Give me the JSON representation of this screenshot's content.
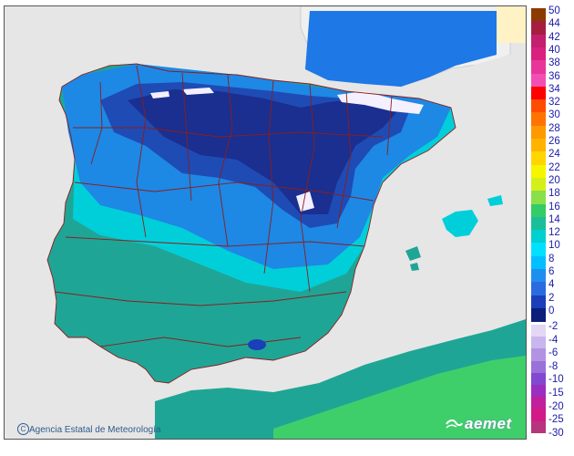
{
  "legend": {
    "labels": [
      "50",
      "44",
      "42",
      "40",
      "38",
      "36",
      "34",
      "32",
      "30",
      "28",
      "26",
      "24",
      "22",
      "20",
      "18",
      "16",
      "14",
      "12",
      "10",
      "8",
      "6",
      "4",
      "2",
      "0",
      "-2",
      "-4",
      "-6",
      "-8",
      "-10",
      "-15",
      "-20",
      "-25",
      "-30"
    ],
    "positive_colors": [
      "#8b3a00",
      "#a61e3e",
      "#c41e6e",
      "#d9207e",
      "#e8359a",
      "#f24fb5",
      "#ff0000",
      "#ff4c00",
      "#ff7300",
      "#ff9900",
      "#ffb300",
      "#ffd500",
      "#f5f500",
      "#d4ef1a",
      "#8ae04a",
      "#33cc66",
      "#1abf9a",
      "#00d0d0",
      "#00e0ff",
      "#00bfff",
      "#1f8fef",
      "#2a6ce0",
      "#1a3fb8",
      "#0c1e7a"
    ],
    "negative_colors": [
      "#e3d7f5",
      "#c9b6ec",
      "#b293e3",
      "#9a70d9",
      "#8248cf",
      "#9b2fbf",
      "#c21f9c",
      "#d21a86",
      "#b7357e"
    ]
  },
  "footer": {
    "credit": "Agencia Estatal de Meteorología",
    "brand": "aemet"
  }
}
